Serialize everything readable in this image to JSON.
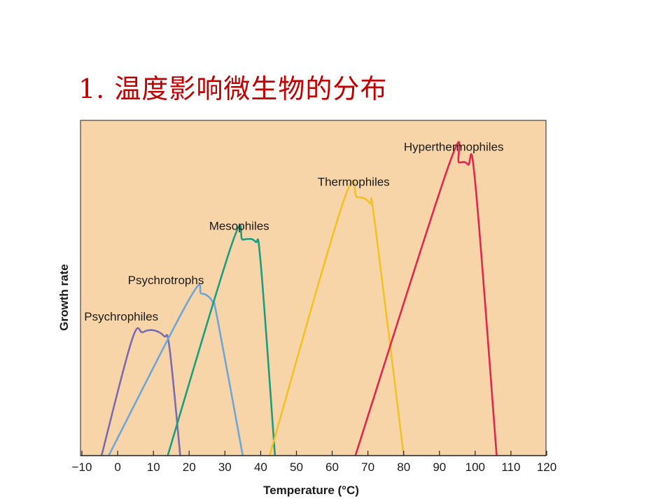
{
  "slide": {
    "title": "1. 温度影响微生物的分布"
  },
  "chart_data": {
    "type": "line",
    "xlabel": "Temperature (°C)",
    "ylabel": "Growth rate",
    "xlim": [
      -10,
      120
    ],
    "ylim": [
      0,
      100
    ],
    "x_ticks": [
      "−10",
      "0",
      "10",
      "20",
      "30",
      "40",
      "50",
      "60",
      "70",
      "80",
      "90",
      "100",
      "110",
      "120"
    ],
    "x_tick_values": [
      -10,
      0,
      10,
      20,
      30,
      40,
      50,
      60,
      70,
      80,
      90,
      100,
      110,
      120
    ],
    "grid": false,
    "background_color": "#f8d5a8",
    "series": [
      {
        "name": "Psychrophiles",
        "color": "#7b6bb0",
        "points": [
          [
            -4.5,
            0
          ],
          [
            4,
            30
          ],
          [
            7,
            32
          ],
          [
            10,
            32.5
          ],
          [
            13,
            31
          ],
          [
            14.5,
            28
          ],
          [
            17.5,
            0
          ]
        ]
      },
      {
        "name": "Psychrotrophs",
        "color": "#6ea6d8",
        "points": [
          [
            -2.5,
            0
          ],
          [
            20,
            40.5
          ],
          [
            23.5,
            42
          ],
          [
            26.5,
            40
          ],
          [
            28,
            35
          ],
          [
            35,
            0
          ]
        ]
      },
      {
        "name": "Mesophiles",
        "color": "#1a9e7e",
        "points": [
          [
            14,
            0
          ],
          [
            32,
            55
          ],
          [
            35,
            56
          ],
          [
            38.5,
            55.5
          ],
          [
            40,
            50
          ],
          [
            44,
            0
          ]
        ]
      },
      {
        "name": "Thermophiles",
        "color": "#f2c125",
        "points": [
          [
            42.5,
            0
          ],
          [
            63,
            65.5
          ],
          [
            67,
            67
          ],
          [
            70.5,
            65.5
          ],
          [
            72,
            60
          ],
          [
            80,
            0
          ]
        ]
      },
      {
        "name": "Hyperthermophiles",
        "color": "#e0284e",
        "points": [
          [
            66.5,
            0
          ],
          [
            92.5,
            75
          ],
          [
            95.5,
            76
          ],
          [
            98,
            75.5
          ],
          [
            100,
            71
          ],
          [
            106,
            0
          ]
        ]
      }
    ],
    "labels": [
      {
        "text": "Psychrophiles",
        "x": 1,
        "y": 35
      },
      {
        "text": "Psychrotrophs",
        "x": 13.5,
        "y": 44.5
      },
      {
        "text": "Mesophiles",
        "x": 34,
        "y": 58.5
      },
      {
        "text": "Thermophiles",
        "x": 66,
        "y": 70
      },
      {
        "text": "Hyperthermophiles",
        "x": 94,
        "y": 79
      }
    ]
  }
}
